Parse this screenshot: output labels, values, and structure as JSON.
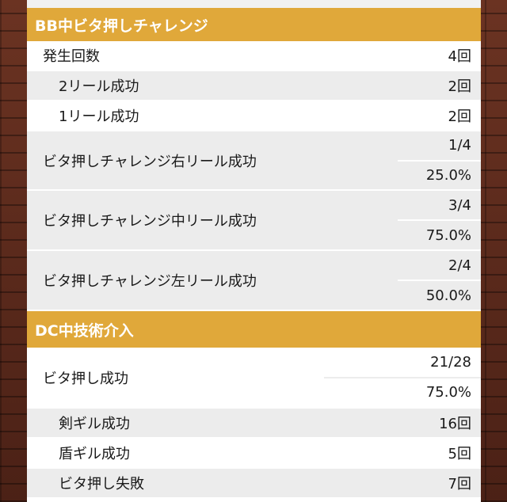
{
  "section1": {
    "title": "BB中ビタ押しチャレンジ",
    "hassei": {
      "label": "発生回数",
      "value": "4回"
    },
    "reel2": {
      "label": "2リール成功",
      "value": "2回"
    },
    "reel1": {
      "label": "1リール成功",
      "value": "2回"
    },
    "right": {
      "label": "ビタ押しチャレンジ右リール成功",
      "fraction": "1/4",
      "percent": "25.0%"
    },
    "center": {
      "label": "ビタ押しチャレンジ中リール成功",
      "fraction": "3/4",
      "percent": "75.0%"
    },
    "left": {
      "label": "ビタ押しチャレンジ左リール成功",
      "fraction": "2/4",
      "percent": "50.0%"
    }
  },
  "section2": {
    "title": "DC中技術介入",
    "bita": {
      "label": "ビタ押し成功",
      "fraction": "21/28",
      "percent": "75.0%"
    },
    "ken": {
      "label": "剣ギル成功",
      "value": "16回"
    },
    "tate": {
      "label": "盾ギル成功",
      "value": "5回"
    },
    "fail": {
      "label": "ビタ押し失敗",
      "value": "7回"
    }
  }
}
